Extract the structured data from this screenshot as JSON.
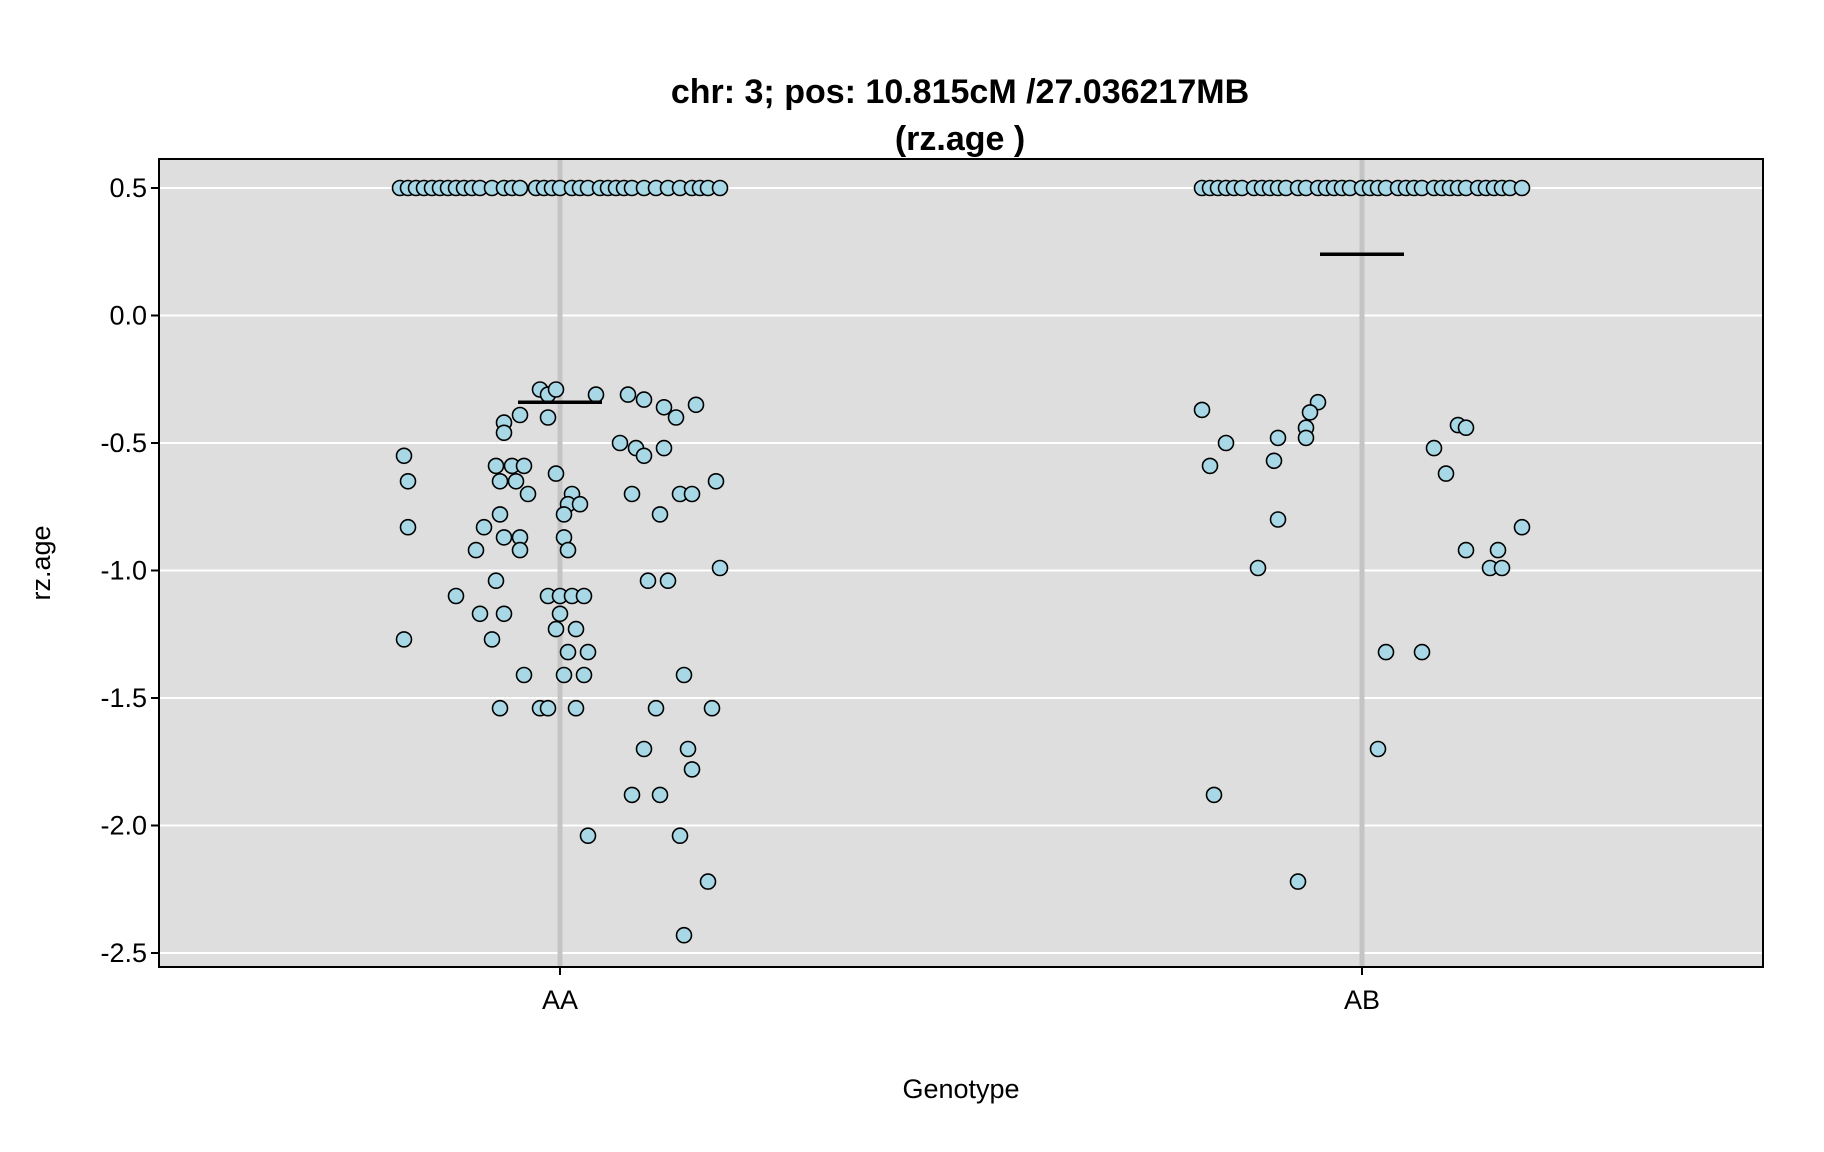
{
  "chart_data": {
    "type": "scatter",
    "title_line1": "chr: 3; pos: 10.815cM /27.036217MB",
    "title_line2": "(rz.age )",
    "xlabel": "Genotype",
    "ylabel": "rz.age",
    "categories": [
      "AA",
      "AB"
    ],
    "ylim": [
      -2.55,
      0.62
    ],
    "yticks": [
      0.5,
      0.0,
      -0.5,
      -1.0,
      -1.5,
      -2.0,
      -2.5
    ],
    "ytick_labels": [
      "0.5",
      "0.0",
      "-0.5",
      "-1.0",
      "-1.5",
      "-2.0",
      "-2.5"
    ],
    "grid": true,
    "colors": {
      "panel_bg": "#dedede",
      "grid": "#ffffff",
      "category_line": "#c4c4c4",
      "point_fill": "#a8d8e6",
      "point_stroke": "#000000",
      "mean_line": "#000000"
    },
    "groups": [
      {
        "name": "AA",
        "mean": -0.34,
        "points": [
          [
            -0.4,
            0.5
          ],
          [
            -0.38,
            0.5
          ],
          [
            -0.36,
            0.5
          ],
          [
            -0.34,
            0.5
          ],
          [
            -0.32,
            0.5
          ],
          [
            -0.3,
            0.5
          ],
          [
            -0.28,
            0.5
          ],
          [
            -0.26,
            0.5
          ],
          [
            -0.24,
            0.5
          ],
          [
            -0.22,
            0.5
          ],
          [
            -0.2,
            0.5
          ],
          [
            -0.17,
            0.5
          ],
          [
            -0.14,
            0.5
          ],
          [
            -0.12,
            0.5
          ],
          [
            -0.1,
            0.5
          ],
          [
            -0.06,
            0.5
          ],
          [
            -0.04,
            0.5
          ],
          [
            -0.02,
            0.5
          ],
          [
            0.0,
            0.5
          ],
          [
            0.03,
            0.5
          ],
          [
            0.05,
            0.5
          ],
          [
            0.07,
            0.5
          ],
          [
            0.1,
            0.5
          ],
          [
            0.12,
            0.5
          ],
          [
            0.14,
            0.5
          ],
          [
            0.16,
            0.5
          ],
          [
            0.18,
            0.5
          ],
          [
            0.21,
            0.5
          ],
          [
            0.24,
            0.5
          ],
          [
            0.27,
            0.5
          ],
          [
            0.3,
            0.5
          ],
          [
            0.33,
            0.5
          ],
          [
            0.35,
            0.5
          ],
          [
            0.37,
            0.5
          ],
          [
            0.4,
            0.5
          ],
          [
            -0.05,
            -0.29
          ],
          [
            -0.03,
            -0.31
          ],
          [
            -0.01,
            -0.29
          ],
          [
            0.17,
            -0.31
          ],
          [
            0.09,
            -0.31
          ],
          [
            0.21,
            -0.33
          ],
          [
            0.26,
            -0.36
          ],
          [
            0.34,
            -0.35
          ],
          [
            -0.1,
            -0.39
          ],
          [
            -0.03,
            -0.4
          ],
          [
            0.29,
            -0.4
          ],
          [
            -0.14,
            -0.42
          ],
          [
            -0.14,
            -0.46
          ],
          [
            0.15,
            -0.5
          ],
          [
            0.19,
            -0.52
          ],
          [
            0.26,
            -0.52
          ],
          [
            0.21,
            -0.55
          ],
          [
            -0.39,
            -0.55
          ],
          [
            -0.16,
            -0.59
          ],
          [
            -0.12,
            -0.59
          ],
          [
            -0.09,
            -0.59
          ],
          [
            -0.01,
            -0.62
          ],
          [
            -0.38,
            -0.65
          ],
          [
            -0.15,
            -0.65
          ],
          [
            -0.11,
            -0.65
          ],
          [
            0.39,
            -0.65
          ],
          [
            -0.08,
            -0.7
          ],
          [
            0.03,
            -0.7
          ],
          [
            0.18,
            -0.7
          ],
          [
            0.3,
            -0.7
          ],
          [
            0.33,
            -0.7
          ],
          [
            0.02,
            -0.74
          ],
          [
            0.05,
            -0.74
          ],
          [
            -0.15,
            -0.78
          ],
          [
            0.01,
            -0.78
          ],
          [
            0.25,
            -0.78
          ],
          [
            -0.38,
            -0.83
          ],
          [
            -0.19,
            -0.83
          ],
          [
            -0.14,
            -0.87
          ],
          [
            -0.1,
            -0.87
          ],
          [
            0.01,
            -0.87
          ],
          [
            -0.21,
            -0.92
          ],
          [
            -0.1,
            -0.92
          ],
          [
            0.02,
            -0.92
          ],
          [
            0.4,
            -0.99
          ],
          [
            -0.16,
            -1.04
          ],
          [
            0.22,
            -1.04
          ],
          [
            0.27,
            -1.04
          ],
          [
            -0.26,
            -1.1
          ],
          [
            -0.03,
            -1.1
          ],
          [
            0.0,
            -1.1
          ],
          [
            0.03,
            -1.1
          ],
          [
            0.06,
            -1.1
          ],
          [
            -0.2,
            -1.17
          ],
          [
            -0.14,
            -1.17
          ],
          [
            0.0,
            -1.17
          ],
          [
            -0.01,
            -1.23
          ],
          [
            0.04,
            -1.23
          ],
          [
            -0.39,
            -1.27
          ],
          [
            -0.17,
            -1.27
          ],
          [
            0.02,
            -1.32
          ],
          [
            0.07,
            -1.32
          ],
          [
            -0.09,
            -1.41
          ],
          [
            0.01,
            -1.41
          ],
          [
            0.06,
            -1.41
          ],
          [
            0.31,
            -1.41
          ],
          [
            -0.15,
            -1.54
          ],
          [
            -0.05,
            -1.54
          ],
          [
            -0.03,
            -1.54
          ],
          [
            0.04,
            -1.54
          ],
          [
            0.24,
            -1.54
          ],
          [
            0.38,
            -1.54
          ],
          [
            0.32,
            -1.7
          ],
          [
            0.21,
            -1.7
          ],
          [
            0.33,
            -1.78
          ],
          [
            0.18,
            -1.88
          ],
          [
            0.25,
            -1.88
          ],
          [
            0.07,
            -2.04
          ],
          [
            0.3,
            -2.04
          ],
          [
            0.37,
            -2.22
          ],
          [
            0.31,
            -2.43
          ]
        ]
      },
      {
        "name": "AB",
        "mean": 0.24,
        "points": [
          [
            -0.4,
            0.5
          ],
          [
            -0.38,
            0.5
          ],
          [
            -0.36,
            0.5
          ],
          [
            -0.34,
            0.5
          ],
          [
            -0.32,
            0.5
          ],
          [
            -0.3,
            0.5
          ],
          [
            -0.27,
            0.5
          ],
          [
            -0.25,
            0.5
          ],
          [
            -0.23,
            0.5
          ],
          [
            -0.21,
            0.5
          ],
          [
            -0.19,
            0.5
          ],
          [
            -0.16,
            0.5
          ],
          [
            -0.14,
            0.5
          ],
          [
            -0.11,
            0.5
          ],
          [
            -0.09,
            0.5
          ],
          [
            -0.07,
            0.5
          ],
          [
            -0.05,
            0.5
          ],
          [
            -0.03,
            0.5
          ],
          [
            0.0,
            0.5
          ],
          [
            0.02,
            0.5
          ],
          [
            0.04,
            0.5
          ],
          [
            0.06,
            0.5
          ],
          [
            0.09,
            0.5
          ],
          [
            0.11,
            0.5
          ],
          [
            0.13,
            0.5
          ],
          [
            0.15,
            0.5
          ],
          [
            0.18,
            0.5
          ],
          [
            0.2,
            0.5
          ],
          [
            0.22,
            0.5
          ],
          [
            0.24,
            0.5
          ],
          [
            0.26,
            0.5
          ],
          [
            0.29,
            0.5
          ],
          [
            0.31,
            0.5
          ],
          [
            0.33,
            0.5
          ],
          [
            0.35,
            0.5
          ],
          [
            0.37,
            0.5
          ],
          [
            0.4,
            0.5
          ],
          [
            -0.11,
            -0.34
          ],
          [
            -0.13,
            -0.38
          ],
          [
            -0.14,
            -0.44
          ],
          [
            -0.14,
            -0.48
          ],
          [
            -0.21,
            -0.48
          ],
          [
            -0.22,
            -0.57
          ],
          [
            -0.34,
            -0.5
          ],
          [
            -0.38,
            -0.59
          ],
          [
            -0.4,
            -0.37
          ],
          [
            -0.21,
            -0.8
          ],
          [
            -0.26,
            -0.99
          ],
          [
            -0.37,
            -1.88
          ],
          [
            -0.16,
            -2.22
          ],
          [
            0.04,
            -1.7
          ],
          [
            0.06,
            -1.32
          ],
          [
            0.15,
            -1.32
          ],
          [
            0.18,
            -0.52
          ],
          [
            0.21,
            -0.62
          ],
          [
            0.24,
            -0.43
          ],
          [
            0.26,
            -0.44
          ],
          [
            0.26,
            -0.92
          ],
          [
            0.34,
            -0.92
          ],
          [
            0.32,
            -0.99
          ],
          [
            0.35,
            -0.99
          ],
          [
            0.4,
            -0.83
          ]
        ]
      }
    ]
  }
}
